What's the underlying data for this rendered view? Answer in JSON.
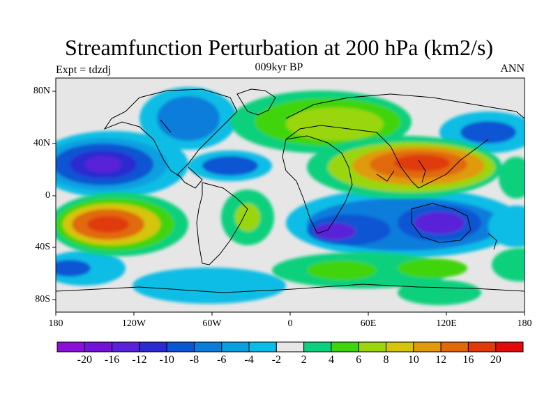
{
  "title": "Streamfunction Perturbation at 200 hPa (km2/s)",
  "left_label": "Expt = tdzdj",
  "center_label": "009kyr BP",
  "right_label": "ANN",
  "x_ticks": [
    "180",
    "120W",
    "60W",
    "0",
    "60E",
    "120E",
    "180"
  ],
  "y_ticks": [
    "80N",
    "40N",
    "0",
    "40S",
    "80S"
  ],
  "colorbar": {
    "colors": [
      "#8b0fd6",
      "#7412d6",
      "#5a22d8",
      "#2a2ad0",
      "#0a55d2",
      "#0a7ddb",
      "#0aa0e0",
      "#09bde5",
      "#e6e6e6",
      "#0bd07d",
      "#3fd40f",
      "#9ad60b",
      "#d6c40a",
      "#e09a0a",
      "#e06a0a",
      "#e03a0a",
      "#e00a0a"
    ],
    "labels": [
      "-20",
      "-16",
      "-12",
      "-10",
      "-8",
      "-6",
      "-4",
      "-2",
      "2",
      "4",
      "6",
      "8",
      "10",
      "12",
      "16",
      "20"
    ]
  }
}
